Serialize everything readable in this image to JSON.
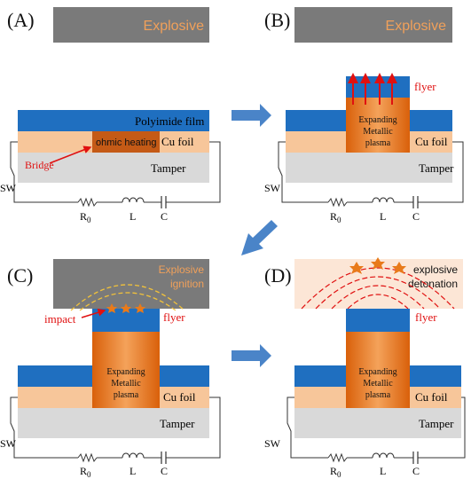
{
  "colors": {
    "explosive_gray": "#7a7a7a",
    "explosive_text": "#f0a05a",
    "polyimide_blue": "#1f6fc0",
    "cu_foil": "#f7c69a",
    "tamper": "#d9d9d9",
    "plasma_orange": "#e8730f",
    "heating_brown": "#c45a16",
    "arrow_blue": "#4a84c8",
    "red": "#e01010",
    "detonation_bg": "#fce6d6"
  },
  "panels": {
    "A": {
      "letter": "(A)",
      "explosive": "Explosive",
      "polyimide": "Polyimide film",
      "ohmic": "ohmic heating",
      "cu_foil": "Cu foil",
      "bridge": "Bridge",
      "tamper": "Tamper",
      "sw": "SW",
      "r0_main": "R",
      "r0_sub": "0",
      "l": "L",
      "c": "C"
    },
    "B": {
      "letter": "(B)",
      "explosive": "Explosive",
      "flyer": "flyer",
      "plasma_1": "Expanding",
      "plasma_2": "Metallic",
      "plasma_3": "plasma",
      "cu_foil": "Cu foil",
      "tamper": "Tamper",
      "sw": "SW",
      "r0_main": "R",
      "r0_sub": "0",
      "l": "L",
      "c": "C"
    },
    "C": {
      "letter": "(C)",
      "explosive_1": "Explosive",
      "explosive_2": "ignition",
      "impact": "impact",
      "flyer": "flyer",
      "plasma_1": "Expanding",
      "plasma_2": "Metallic",
      "plasma_3": "plasma",
      "cu_foil": "Cu foil",
      "tamper": "Tamper",
      "sw": "SW",
      "r0_main": "R",
      "r0_sub": "0",
      "l": "L",
      "c": "C"
    },
    "D": {
      "letter": "(D)",
      "explosive_1": "explosive",
      "explosive_2": "detonation",
      "flyer": "flyer",
      "plasma_1": "Expanding",
      "plasma_2": "Metallic",
      "plasma_3": "plasma",
      "cu_foil": "Cu foil",
      "tamper": "Tamper",
      "sw": "SW",
      "r0_main": "R",
      "r0_sub": "0",
      "l": "L",
      "c": "C"
    }
  }
}
